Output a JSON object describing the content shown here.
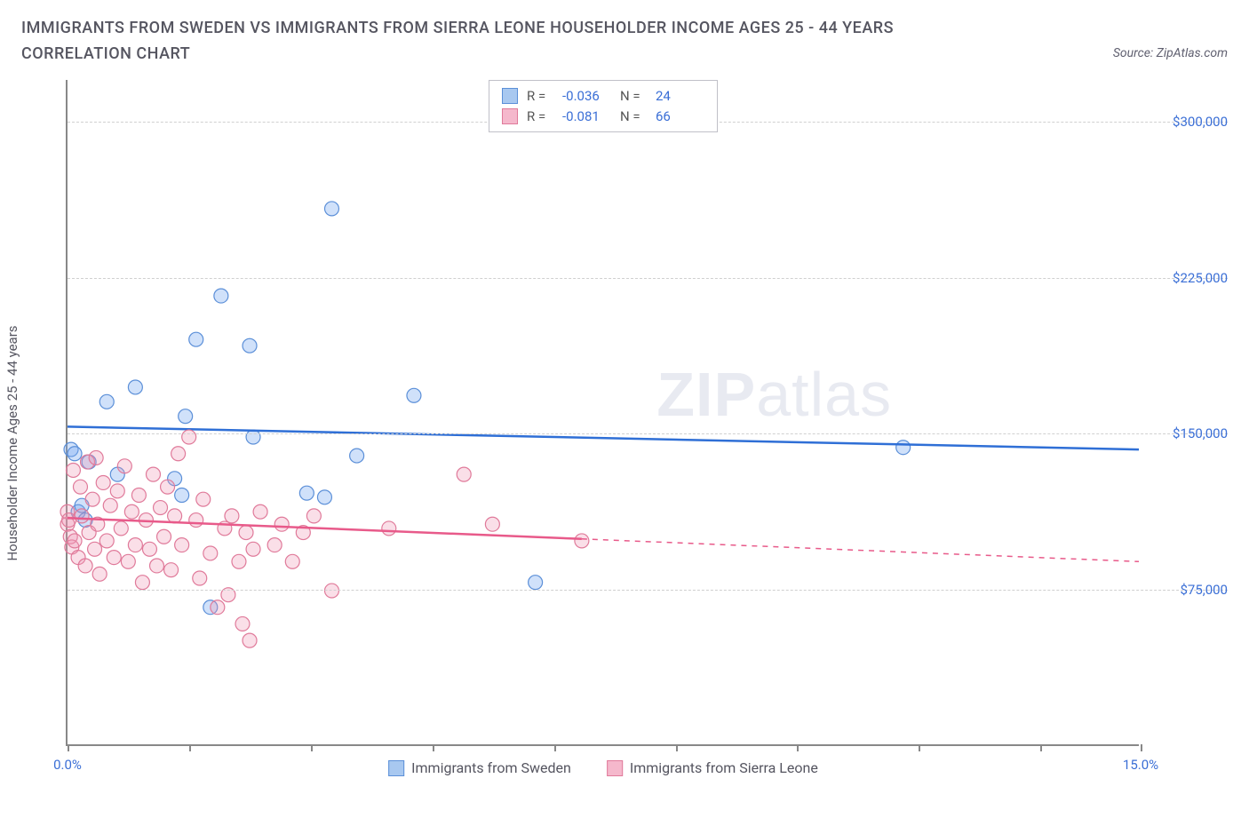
{
  "title": "IMMIGRANTS FROM SWEDEN VS IMMIGRANTS FROM SIERRA LEONE HOUSEHOLDER INCOME AGES 25 - 44 YEARS CORRELATION CHART",
  "source": "Source: ZipAtlas.com",
  "watermark_bold": "ZIP",
  "watermark_light": "atlas",
  "y_axis_label": "Householder Income Ages 25 - 44 years",
  "chart": {
    "type": "scatter",
    "xlim": [
      0,
      15
    ],
    "ylim": [
      0,
      320000
    ],
    "x_ticks": [
      0,
      1.7,
      3.4,
      5.1,
      6.8,
      8.5,
      10.2,
      11.9,
      13.6,
      15
    ],
    "x_labels_shown": {
      "0": "0.0%",
      "15": "15.0%"
    },
    "y_ticks": [
      75000,
      150000,
      225000,
      300000
    ],
    "y_labels": {
      "75000": "$75,000",
      "150000": "$150,000",
      "225000": "$225,000",
      "300000": "$300,000"
    },
    "background_color": "#ffffff",
    "grid_color": "#d0d0d0",
    "marker_radius": 8,
    "marker_stroke_width": 1.2,
    "series": [
      {
        "name": "Immigrants from Sweden",
        "color_fill": "rgba(120,170,240,0.35)",
        "color_stroke": "#5b8fd8",
        "swatch_fill": "#a8c8f0",
        "swatch_stroke": "#5b8fd8",
        "R": "-0.036",
        "N": "24",
        "trend": {
          "y_at_x0": 153000,
          "y_at_xmax": 142000,
          "solid_until_x": 15,
          "color": "#2f6fd6",
          "width": 2.5
        },
        "points": [
          [
            0.05,
            142000
          ],
          [
            0.1,
            140000
          ],
          [
            0.15,
            112000
          ],
          [
            0.25,
            108000
          ],
          [
            0.3,
            136000
          ],
          [
            0.55,
            165000
          ],
          [
            0.7,
            130000
          ],
          [
            0.95,
            172000
          ],
          [
            1.5,
            128000
          ],
          [
            1.6,
            120000
          ],
          [
            1.65,
            158000
          ],
          [
            1.8,
            195000
          ],
          [
            2.0,
            66000
          ],
          [
            2.15,
            216000
          ],
          [
            2.55,
            192000
          ],
          [
            2.6,
            148000
          ],
          [
            3.35,
            121000
          ],
          [
            3.6,
            119000
          ],
          [
            3.7,
            258000
          ],
          [
            4.05,
            139000
          ],
          [
            4.85,
            168000
          ],
          [
            6.55,
            78000
          ],
          [
            11.7,
            143000
          ],
          [
            0.2,
            115000
          ]
        ]
      },
      {
        "name": "Immigrants from Sierra Leone",
        "color_fill": "rgba(240,150,180,0.30)",
        "color_stroke": "#e07a9a",
        "swatch_fill": "#f5b8cc",
        "swatch_stroke": "#e07a9a",
        "R": "-0.081",
        "N": "66",
        "trend": {
          "y_at_x0": 109000,
          "y_at_xmax": 88000,
          "solid_until_x": 7.2,
          "color": "#e85a8a",
          "width": 2.5
        },
        "points": [
          [
            0.0,
            106000
          ],
          [
            0.0,
            112000
          ],
          [
            0.02,
            108000
          ],
          [
            0.04,
            100000
          ],
          [
            0.06,
            95000
          ],
          [
            0.08,
            132000
          ],
          [
            0.1,
            98000
          ],
          [
            0.15,
            90000
          ],
          [
            0.18,
            124000
          ],
          [
            0.2,
            110000
          ],
          [
            0.25,
            86000
          ],
          [
            0.28,
            136000
          ],
          [
            0.3,
            102000
          ],
          [
            0.35,
            118000
          ],
          [
            0.38,
            94000
          ],
          [
            0.4,
            138000
          ],
          [
            0.42,
            106000
          ],
          [
            0.45,
            82000
          ],
          [
            0.5,
            126000
          ],
          [
            0.55,
            98000
          ],
          [
            0.6,
            115000
          ],
          [
            0.65,
            90000
          ],
          [
            0.7,
            122000
          ],
          [
            0.75,
            104000
          ],
          [
            0.8,
            134000
          ],
          [
            0.85,
            88000
          ],
          [
            0.9,
            112000
          ],
          [
            0.95,
            96000
          ],
          [
            1.0,
            120000
          ],
          [
            1.05,
            78000
          ],
          [
            1.1,
            108000
          ],
          [
            1.15,
            94000
          ],
          [
            1.2,
            130000
          ],
          [
            1.25,
            86000
          ],
          [
            1.3,
            114000
          ],
          [
            1.35,
            100000
          ],
          [
            1.4,
            124000
          ],
          [
            1.45,
            84000
          ],
          [
            1.5,
            110000
          ],
          [
            1.6,
            96000
          ],
          [
            1.7,
            148000
          ],
          [
            1.8,
            108000
          ],
          [
            1.85,
            80000
          ],
          [
            1.9,
            118000
          ],
          [
            2.0,
            92000
          ],
          [
            2.1,
            66000
          ],
          [
            2.2,
            104000
          ],
          [
            2.25,
            72000
          ],
          [
            2.3,
            110000
          ],
          [
            2.4,
            88000
          ],
          [
            2.45,
            58000
          ],
          [
            2.5,
            102000
          ],
          [
            2.6,
            94000
          ],
          [
            2.7,
            112000
          ],
          [
            2.55,
            50000
          ],
          [
            2.9,
            96000
          ],
          [
            3.0,
            106000
          ],
          [
            3.15,
            88000
          ],
          [
            3.3,
            102000
          ],
          [
            3.45,
            110000
          ],
          [
            3.7,
            74000
          ],
          [
            4.5,
            104000
          ],
          [
            5.55,
            130000
          ],
          [
            5.95,
            106000
          ],
          [
            7.2,
            98000
          ],
          [
            1.55,
            140000
          ]
        ]
      }
    ],
    "legend_top_labels": {
      "R": "R =",
      "N": "N ="
    },
    "legend_bottom": [
      {
        "label": "Immigrants from Sweden",
        "swatch_fill": "#a8c8f0",
        "swatch_stroke": "#5b8fd8"
      },
      {
        "label": "Immigrants from Sierra Leone",
        "swatch_fill": "#f5b8cc",
        "swatch_stroke": "#e07a9a"
      }
    ]
  }
}
